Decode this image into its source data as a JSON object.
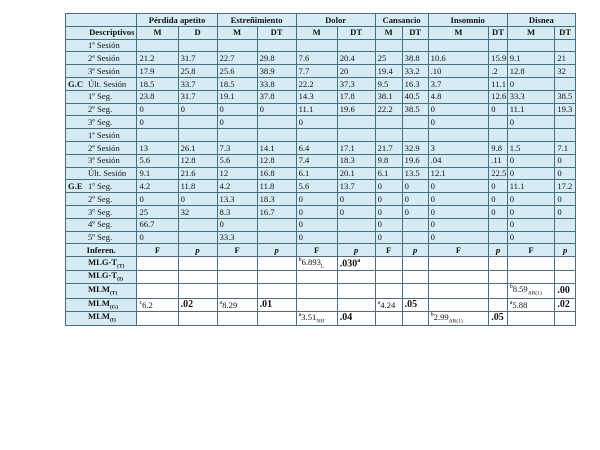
{
  "table": {
    "symptoms": [
      "Pérdida apetito",
      "Estreñimiento",
      "Dolor",
      "Cansancio",
      "Insomnio",
      "Disnea"
    ],
    "descriptivos_label": "Descriptivos",
    "stat_labels": [
      "M",
      "D",
      "M",
      "DT",
      "M",
      "DT",
      "M",
      "DT",
      "M",
      "DT",
      "M",
      "DT"
    ],
    "gc": {
      "label": "G.C",
      "rows": [
        [
          "1ª Sesión",
          "",
          "",
          "",
          "",
          "",
          "",
          "",
          "",
          "",
          "",
          "",
          ""
        ],
        [
          "2ª Sesión",
          "21.2",
          "31.7",
          "22.7",
          "29.8",
          "7.6",
          "20.4",
          "25",
          "38.8",
          "10.6",
          "15.9",
          "9.1",
          "21"
        ],
        [
          "3ª Sesión",
          "17.9",
          "25.8",
          "25.6",
          "38.9",
          "7.7",
          "20",
          "19.4",
          "33.2",
          ".10",
          ".2",
          "12.8",
          "32"
        ],
        [
          "Últ. Sesión",
          "18.5",
          "33.7",
          "18.5",
          "33.8",
          "22.2",
          "37.3",
          "9.5",
          "16.3",
          "3.7",
          "11.1",
          "0",
          ""
        ],
        [
          "1º Seg.",
          "23.8",
          "31.7",
          "19.1",
          "37.8",
          "14.3",
          "17.8",
          "38.1",
          "40.5",
          "4.8",
          "12.6",
          "33.3",
          "38.5"
        ],
        [
          "2º Seg.",
          "0",
          "0",
          "0",
          "0",
          "11.1",
          "19.6",
          "22.2",
          "38.5",
          "0",
          "0",
          "11.1",
          "19.3"
        ],
        [
          "3º Seg.",
          "0",
          "",
          "0",
          "",
          "0",
          "",
          "",
          "",
          "0",
          "",
          "0",
          ""
        ]
      ]
    },
    "ge": {
      "label": "G.E",
      "rows": [
        [
          "1ª Sesión",
          "",
          "",
          "",
          "",
          "",
          "",
          "",
          "",
          "",
          "",
          "",
          ""
        ],
        [
          "2ª Sesión",
          "13",
          "26.1",
          "7.3",
          "14.1",
          "6.4",
          "17.1",
          "21.7",
          "32.9",
          "3",
          "9.8",
          "1.5",
          "7.1"
        ],
        [
          "3ª Sesión",
          "5.6",
          "12.8",
          "5.6",
          "12.8",
          "7.4",
          "18.3",
          "9.8",
          "19.6",
          ".04",
          ".11",
          "0",
          "0"
        ],
        [
          "Últ. Sesión",
          "9.1",
          "21.6",
          "12",
          "16.8",
          "6.1",
          "20.1",
          "6.1",
          "13.5",
          "12.1",
          "22.5",
          "0",
          "0"
        ],
        [
          "1º Seg.",
          "4.2",
          "11.8",
          "4.2",
          "11.8",
          "5.6",
          "13.7",
          "0",
          "0",
          "0",
          "0",
          "11.1",
          "17.2"
        ],
        [
          "2º Seg.",
          "0",
          "0",
          "13.3",
          "18.3",
          "0",
          "0",
          "0",
          "0",
          "0",
          "0",
          "0",
          "0"
        ],
        [
          "3º Seg.",
          "25",
          "32",
          "8.3",
          "16.7",
          "0",
          "0",
          "0",
          "0",
          "0",
          "0",
          "0",
          "0"
        ],
        [
          "4º Seg.",
          "66.7",
          "",
          "0",
          "",
          "0",
          "",
          "0",
          "",
          "0",
          "",
          "0",
          ""
        ],
        [
          "5º Seg.",
          "0",
          "",
          "33.3",
          "",
          "0",
          "",
          "0",
          "",
          "0",
          "",
          "0",
          ""
        ]
      ]
    },
    "inferen_label": "Inferen.",
    "inferen_stats": [
      "F",
      "p",
      "F",
      "p",
      "F",
      "p",
      "F",
      "p",
      "F",
      "p",
      "F",
      "p"
    ],
    "model_rows": [
      {
        "label": "MLG-T",
        "label_sub": "(T)",
        "cells": [
          {
            "v": ""
          },
          {
            "v": ""
          },
          {
            "v": ""
          },
          {
            "v": ""
          },
          {
            "v": "6.893",
            "sup": "b",
            "sub": "L"
          },
          {
            "v": ".030",
            "sup_after": "a",
            "red": true
          },
          {
            "v": ""
          },
          {
            "v": ""
          },
          {
            "v": ""
          },
          {
            "v": ""
          },
          {
            "v": ""
          },
          {
            "v": ""
          }
        ]
      },
      {
        "label": "MLG-T",
        "label_sub": "(I)",
        "cells": [
          {
            "v": ""
          },
          {
            "v": ""
          },
          {
            "v": ""
          },
          {
            "v": ""
          },
          {
            "v": ""
          },
          {
            "v": ""
          },
          {
            "v": ""
          },
          {
            "v": ""
          },
          {
            "v": ""
          },
          {
            "v": ""
          },
          {
            "v": ""
          },
          {
            "v": ""
          }
        ]
      },
      {
        "label": "MLM",
        "label_sub": "(T)",
        "cells": [
          {
            "v": ""
          },
          {
            "v": ""
          },
          {
            "v": ""
          },
          {
            "v": ""
          },
          {
            "v": ""
          },
          {
            "v": ""
          },
          {
            "v": ""
          },
          {
            "v": ""
          },
          {
            "v": ""
          },
          {
            "v": ""
          },
          {
            "v": "8.59",
            "sup": "b",
            "sub": "AR(1)"
          },
          {
            "v": ".00",
            "red": true
          }
        ]
      },
      {
        "label": "MLM",
        "label_sub": "(G)",
        "cells": [
          {
            "v": "6.2",
            "sup": "c"
          },
          {
            "v": ".02",
            "red": true
          },
          {
            "v": "8.29",
            "sup": "a"
          },
          {
            "v": ".01",
            "red": true
          },
          {
            "v": ""
          },
          {
            "v": ""
          },
          {
            "v": "4.24",
            "sup": "a"
          },
          {
            "v": ".05",
            "red": true
          },
          {
            "v": ""
          },
          {
            "v": ""
          },
          {
            "v": "5.88",
            "sup": "a"
          },
          {
            "v": ".02",
            "red": true
          }
        ]
      },
      {
        "label": "MLM",
        "label_sub": "(I)",
        "cells": [
          {
            "v": ""
          },
          {
            "v": ""
          },
          {
            "v": ""
          },
          {
            "v": ""
          },
          {
            "v": "3.51",
            "sup": "a",
            "sub": "NH"
          },
          {
            "v": ".04",
            "red": true
          },
          {
            "v": ""
          },
          {
            "v": ""
          },
          {
            "v": "2.99",
            "sup": "b",
            "sub": "AR(1)"
          },
          {
            "v": ".05",
            "red": true
          },
          {
            "v": ""
          },
          {
            "v": ""
          }
        ]
      }
    ]
  }
}
